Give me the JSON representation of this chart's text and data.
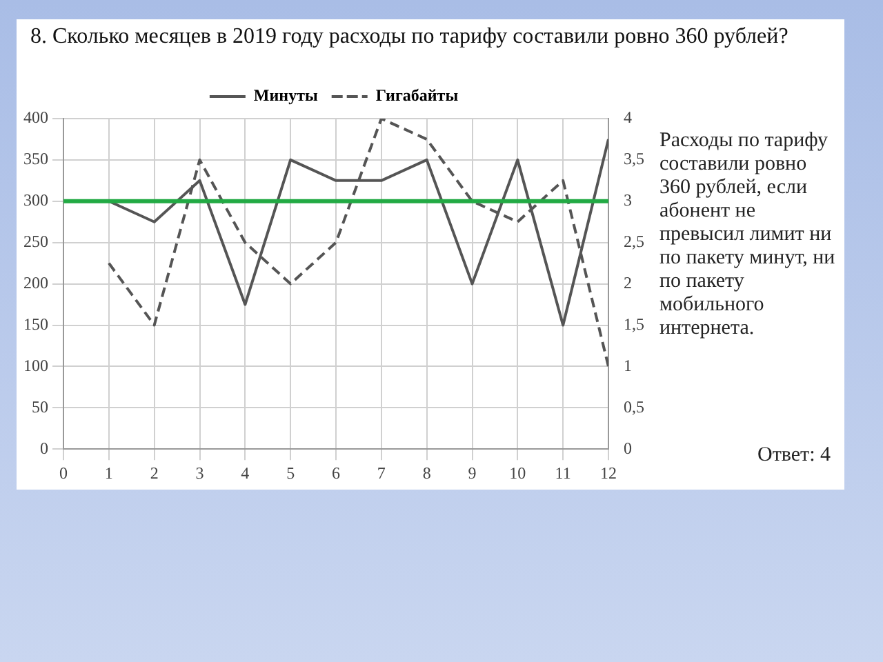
{
  "chart_data": {
    "type": "line",
    "title": "8. Сколько месяцев в 2019 году расходы по тарифу составили ровно 360 рублей?",
    "x": [
      1,
      2,
      3,
      4,
      5,
      6,
      7,
      8,
      9,
      10,
      11,
      12
    ],
    "series": [
      {
        "name": "Минуты",
        "color": "#555555",
        "line_style": "solid",
        "values": [
          300,
          275,
          325,
          175,
          350,
          325,
          325,
          350,
          200,
          350,
          150,
          375
        ]
      },
      {
        "name": "Гигабайты",
        "color": "#555555",
        "line_style": "dashed",
        "axis": "y2",
        "values": [
          2.25,
          1.5,
          3.5,
          2.5,
          2,
          2.5,
          4,
          3.75,
          3,
          2.75,
          3.25,
          1
        ]
      }
    ],
    "xlim": [
      0,
      12
    ],
    "xticks": [
      0,
      1,
      2,
      3,
      4,
      5,
      6,
      7,
      8,
      9,
      10,
      11,
      12
    ],
    "ylim": [
      0,
      400
    ],
    "yticks": [
      0,
      50,
      100,
      150,
      200,
      250,
      300,
      350,
      400
    ],
    "y2lim": [
      0,
      4
    ],
    "y2ticks": [
      0,
      {
        "value": 0.5,
        "label": "0,5"
      },
      1,
      {
        "value": 1.5,
        "label": "1,5"
      },
      2,
      {
        "value": 2.5,
        "label": "2,5"
      },
      3,
      {
        "value": 3.5,
        "label": "3,5"
      },
      4
    ],
    "ref_lines": [
      {
        "axis": "y",
        "value": 300,
        "color": "#22aa44"
      }
    ],
    "grid": true,
    "legend": "top",
    "marker": "none",
    "annotations": [
      "Расходы по тарифу составили ровно 360 рублей, если абонент не превысил лимит ни по пакету минут, ни по пакету мобильного интернета.",
      "Ответ: 4"
    ]
  }
}
